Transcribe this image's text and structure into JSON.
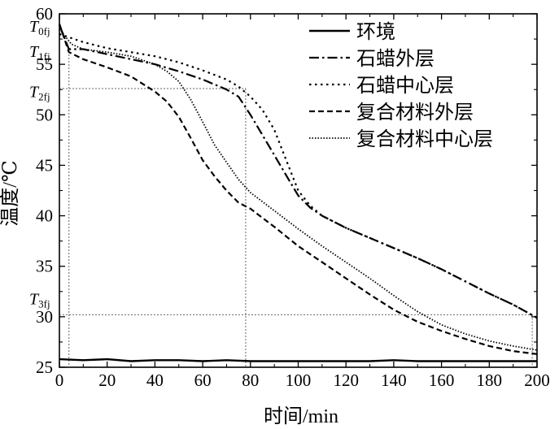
{
  "chart_data": {
    "type": "line",
    "title": "",
    "xlabel": "时间/min",
    "ylabel": "温度/℃",
    "xlim": [
      0,
      200
    ],
    "ylim": [
      25,
      60
    ],
    "xticks": [
      0,
      20,
      40,
      60,
      80,
      100,
      120,
      140,
      160,
      180,
      200
    ],
    "yticks": [
      25,
      30,
      35,
      40,
      45,
      50,
      55,
      60
    ],
    "grid": false,
    "legend_position": "top-right",
    "series": [
      {
        "name": "环境",
        "style": "solid",
        "x": [
          0,
          10,
          20,
          30,
          40,
          50,
          60,
          70,
          80,
          90,
          100,
          110,
          120,
          130,
          140,
          150,
          160,
          170,
          180,
          190,
          200
        ],
        "y": [
          25.8,
          25.7,
          25.8,
          25.6,
          25.7,
          25.7,
          25.6,
          25.7,
          25.6,
          25.6,
          25.6,
          25.6,
          25.6,
          25.6,
          25.7,
          25.6,
          25.6,
          25.6,
          25.6,
          25.6,
          25.6
        ]
      },
      {
        "name": "石蜡外层",
        "style": "dashdot",
        "x": [
          0,
          4,
          10,
          20,
          30,
          40,
          50,
          60,
          70,
          75,
          80,
          85,
          90,
          95,
          100,
          105,
          110,
          120,
          130,
          140,
          150,
          160,
          170,
          180,
          190,
          200
        ],
        "y": [
          58.9,
          56.5,
          56.5,
          56.0,
          55.5,
          55.0,
          54.3,
          53.5,
          52.5,
          51.8,
          50.0,
          48.0,
          46.0,
          44.0,
          42.0,
          40.8,
          40.0,
          38.8,
          37.8,
          36.8,
          35.8,
          34.7,
          33.5,
          32.3,
          31.2,
          29.9
        ]
      },
      {
        "name": "石蜡中心层",
        "style": "dotted",
        "x": [
          0,
          10,
          20,
          30,
          40,
          50,
          60,
          70,
          75,
          80,
          85,
          90,
          95,
          100,
          105,
          110,
          120,
          130,
          140,
          150,
          160,
          170,
          180,
          190,
          200
        ],
        "y": [
          58.0,
          57.2,
          56.6,
          56.2,
          55.8,
          55.2,
          54.4,
          53.5,
          52.8,
          51.8,
          50.5,
          48.5,
          45.5,
          42.5,
          41.0,
          40.0,
          38.8,
          37.8,
          36.8,
          35.8,
          34.7,
          33.5,
          32.3,
          31.2,
          29.9
        ]
      },
      {
        "name": "复合材料外层",
        "style": "dashed",
        "x": [
          0,
          4,
          10,
          20,
          30,
          40,
          45,
          50,
          55,
          60,
          65,
          70,
          75,
          80,
          90,
          100,
          110,
          120,
          130,
          140,
          150,
          160,
          170,
          180,
          190,
          200
        ],
        "y": [
          59.0,
          56.2,
          55.5,
          54.7,
          53.8,
          52.3,
          51.3,
          49.8,
          47.7,
          45.5,
          43.9,
          42.5,
          41.3,
          40.7,
          38.9,
          37.0,
          35.4,
          33.8,
          32.2,
          30.7,
          29.5,
          28.6,
          27.8,
          27.1,
          26.6,
          26.3
        ]
      },
      {
        "name": "复合材料中心层",
        "style": "fine-dotted",
        "x": [
          0,
          5,
          10,
          20,
          30,
          40,
          45,
          50,
          55,
          60,
          65,
          70,
          75,
          80,
          90,
          100,
          110,
          120,
          130,
          140,
          150,
          160,
          170,
          180,
          190,
          200
        ],
        "y": [
          58.5,
          57.0,
          56.5,
          56.2,
          55.8,
          55.0,
          54.3,
          53.3,
          51.5,
          49.3,
          47.0,
          45.3,
          43.6,
          42.3,
          40.5,
          38.7,
          37.0,
          35.4,
          33.8,
          32.1,
          30.5,
          29.2,
          28.3,
          27.6,
          27.1,
          26.7
        ]
      }
    ],
    "annotations": {
      "labels": [
        {
          "main": "T",
          "sub": "0fj",
          "y": 58.8
        },
        {
          "main": "T",
          "sub": "1fj",
          "y": 56.3
        },
        {
          "main": "T",
          "sub": "2fj",
          "y": 52.3
        },
        {
          "main": "T",
          "sub": "3fj",
          "y": 31.8
        }
      ],
      "guide_lines": [
        {
          "from": [
            0,
            52.6
          ],
          "to": [
            78,
            52.6
          ]
        },
        {
          "from": [
            78,
            52.6
          ],
          "to": [
            78,
            25
          ]
        },
        {
          "from": [
            4,
            56.3
          ],
          "to": [
            4,
            25
          ]
        },
        {
          "from": [
            0,
            30.2
          ],
          "to": [
            198,
            30.2
          ]
        },
        {
          "from": [
            198,
            30.2
          ],
          "to": [
            198,
            25
          ]
        }
      ]
    }
  }
}
